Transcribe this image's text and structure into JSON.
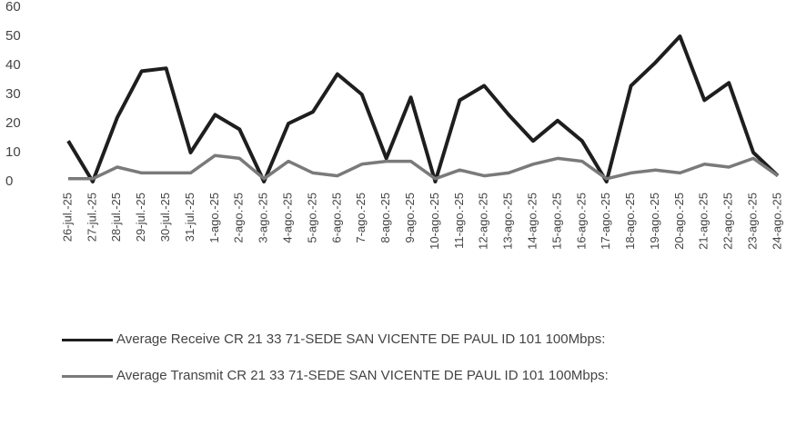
{
  "chart_data": {
    "type": "line",
    "categories": [
      "26-jul.-25",
      "27-jul.-25",
      "28-jul.-25",
      "29-jul.-25",
      "30-jul.-25",
      "31-jul.-25",
      "1-ago.-25",
      "2-ago.-25",
      "3-ago.-25",
      "4-ago.-25",
      "5-ago.-25",
      "6-ago.-25",
      "7-ago.-25",
      "8-ago.-25",
      "9-ago.-25",
      "10-ago.-25",
      "11-ago.-25",
      "12-ago.-25",
      "13-ago.-25",
      "14-ago.-25",
      "15-ago.-25",
      "16-ago.-25",
      "17-ago.-25",
      "18-ago.-25",
      "19-ago.-25",
      "20-ago.-25",
      "21-ago.-25",
      "22-ago.-25",
      "23-ago.-25",
      "24-ago.-25"
    ],
    "series": [
      {
        "name": "Average Receive CR 21 33 71-SEDE SAN VICENTE DE PAUL ID 101 100Mbps:",
        "color": "#1e1e1e",
        "values": [
          14,
          0,
          22,
          38,
          39,
          10,
          23,
          18,
          0,
          20,
          24,
          37,
          30,
          8,
          29,
          0,
          28,
          33,
          23,
          14,
          21,
          14,
          0,
          33,
          41,
          50,
          28,
          34,
          10,
          2
        ]
      },
      {
        "name": "Average Transmit CR 21 33 71-SEDE SAN VICENTE DE PAUL ID 101 100Mbps:",
        "color": "#7a7a7a",
        "values": [
          1,
          1,
          5,
          3,
          3,
          3,
          9,
          8,
          1,
          7,
          3,
          2,
          6,
          7,
          7,
          1,
          4,
          2,
          3,
          6,
          8,
          7,
          1,
          3,
          4,
          3,
          6,
          5,
          8,
          2
        ]
      }
    ],
    "ylim": [
      0,
      60
    ],
    "yticks": [
      0,
      10,
      20,
      30,
      40,
      50,
      60
    ]
  }
}
